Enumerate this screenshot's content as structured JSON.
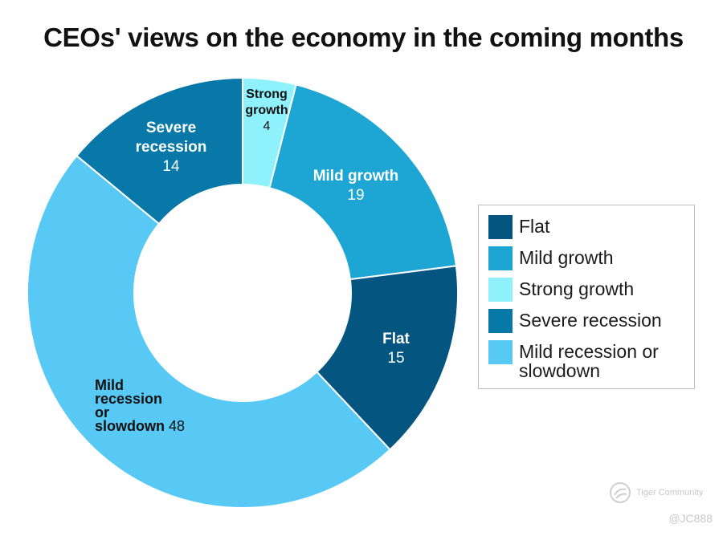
{
  "chart_data": {
    "type": "pie",
    "style": "donut",
    "title": "CEOs' views on the economy in the coming months",
    "categories": [
      "Strong growth",
      "Mild growth",
      "Flat",
      "Mild recession or slowdown",
      "Severe recession"
    ],
    "values": [
      4,
      19,
      15,
      48,
      14
    ],
    "colors": [
      "#8ef1fc",
      "#1da6d4",
      "#045580",
      "#58c8f4",
      "#0878a8"
    ],
    "label_colors": [
      "#111111",
      "#ffffff",
      "#ffffff",
      "#111111",
      "#ffffff"
    ],
    "slice_labels": [
      {
        "name_lines": [
          "Strong",
          "growth"
        ],
        "value": "4"
      },
      {
        "name_lines": [
          "Mild growth"
        ],
        "value": "19"
      },
      {
        "name_lines": [
          "Flat"
        ],
        "value": "15"
      },
      {
        "name_lines": [
          "Mild",
          "recession",
          "or",
          "slowdown"
        ],
        "value": "48"
      },
      {
        "name_lines": [
          "Severe",
          "recession"
        ],
        "value": "14"
      }
    ],
    "legend": {
      "position": "right",
      "entries": [
        {
          "label": "Flat",
          "color": "#045580"
        },
        {
          "label": "Mild growth",
          "color": "#1da6d4"
        },
        {
          "label": "Strong growth",
          "color": "#8ef1fc"
        },
        {
          "label": "Severe recession",
          "color": "#0878a8"
        },
        {
          "label": "Mild recession or slowdown",
          "color": "#58c8f4"
        }
      ]
    }
  },
  "watermark": {
    "brand": "Tiger Community",
    "handle": "@JC888"
  }
}
